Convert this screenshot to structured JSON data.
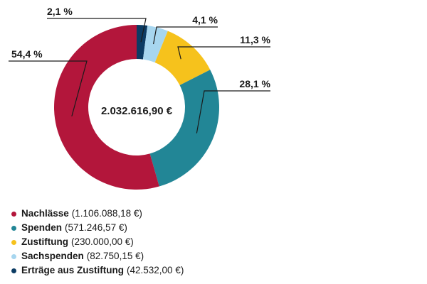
{
  "chart_data": {
    "type": "pie",
    "style": "donut",
    "total_label": "2.032.616,90 €",
    "slices": [
      {
        "label": "Erträge aus Zustiftung",
        "amount": "(42.532,00 €)",
        "value": 42532.0,
        "pct_label": "2,1 %",
        "color": "#0c3b63"
      },
      {
        "label": "Sachspenden",
        "amount": "(82.750,15 €)",
        "value": 82750.15,
        "pct_label": "4,1 %",
        "color": "#a7d6ef"
      },
      {
        "label": "Zustiftung",
        "amount": "(230.000,00 €)",
        "value": 230000.0,
        "pct_label": "11,3 %",
        "color": "#f6c21c"
      },
      {
        "label": "Spenden",
        "amount": "(571.246,57 €)",
        "value": 571246.57,
        "pct_label": "28,1 %",
        "color": "#228696"
      },
      {
        "label": "Nachlässe",
        "amount": "(1.106.088,18 €)",
        "value": 1106088.18,
        "pct_label": "54,4 %",
        "color": "#b3163b"
      }
    ],
    "legend_order": [
      4,
      3,
      2,
      1,
      0
    ],
    "legend_position": "bottom-left"
  }
}
